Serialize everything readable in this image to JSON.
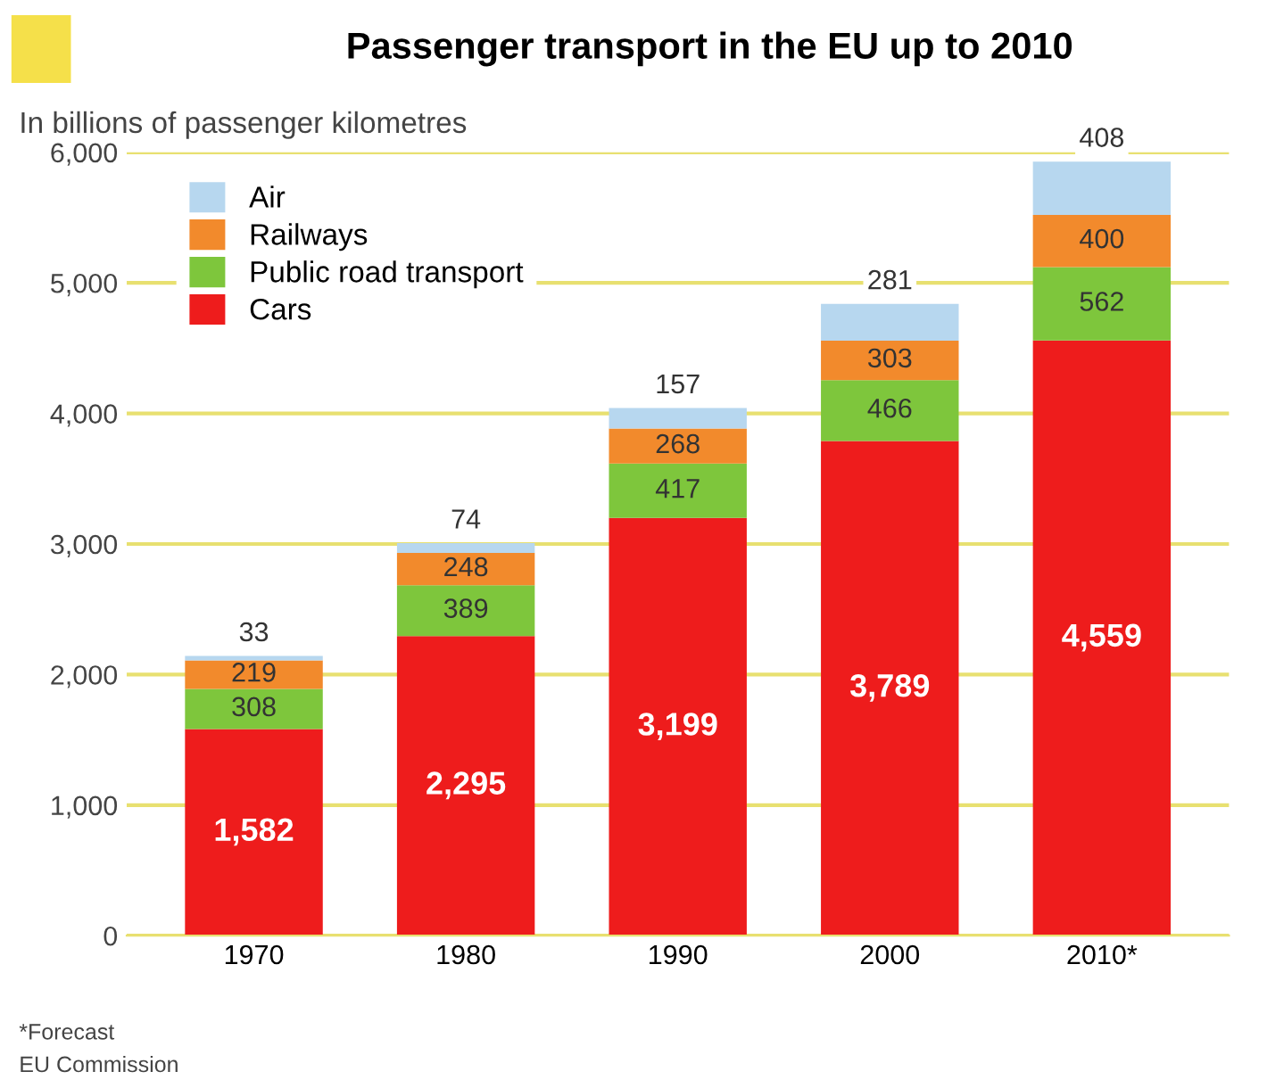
{
  "chart_data": {
    "type": "bar",
    "title": "Passenger transport in the EU up to 2010",
    "ylabel": "In billions of passenger kilometres",
    "categories": [
      "1970",
      "1980",
      "1990",
      "2000",
      "2010*"
    ],
    "stacked": true,
    "series": [
      {
        "name": "Cars",
        "color": "#ee1c1c",
        "values": [
          1582,
          2295,
          3199,
          3789,
          4559
        ],
        "value_labels": [
          "1,582",
          "2,295",
          "3,199",
          "3,789",
          "4,559"
        ]
      },
      {
        "name": "Public road transport",
        "color": "#7ec63c",
        "values": [
          308,
          389,
          417,
          466,
          562
        ],
        "value_labels": [
          "308",
          "389",
          "417",
          "466",
          "562"
        ]
      },
      {
        "name": "Railways",
        "color": "#f28a2c",
        "values": [
          219,
          248,
          268,
          303,
          400
        ],
        "value_labels": [
          "219",
          "248",
          "268",
          "303",
          "400"
        ]
      },
      {
        "name": "Air",
        "color": "#b7d7ef",
        "values": [
          33,
          74,
          157,
          281,
          408
        ],
        "value_labels": [
          "33",
          "74",
          "157",
          "281",
          "408"
        ]
      }
    ],
    "ylim": [
      0,
      6000
    ],
    "yticks": [
      0,
      {
        "value": 1000,
        "label": "1,000"
      },
      {
        "value": 2000,
        "label": "2,000"
      },
      {
        "value": 3000,
        "label": "3,000"
      },
      {
        "value": 4000,
        "label": "4,000"
      },
      {
        "value": 5000,
        "label": "5,000"
      },
      {
        "value": 6000,
        "label": "6,000"
      }
    ],
    "grid": "y",
    "legend": "top left",
    "annotations": [
      "*Forecast",
      "EU Commission"
    ]
  }
}
